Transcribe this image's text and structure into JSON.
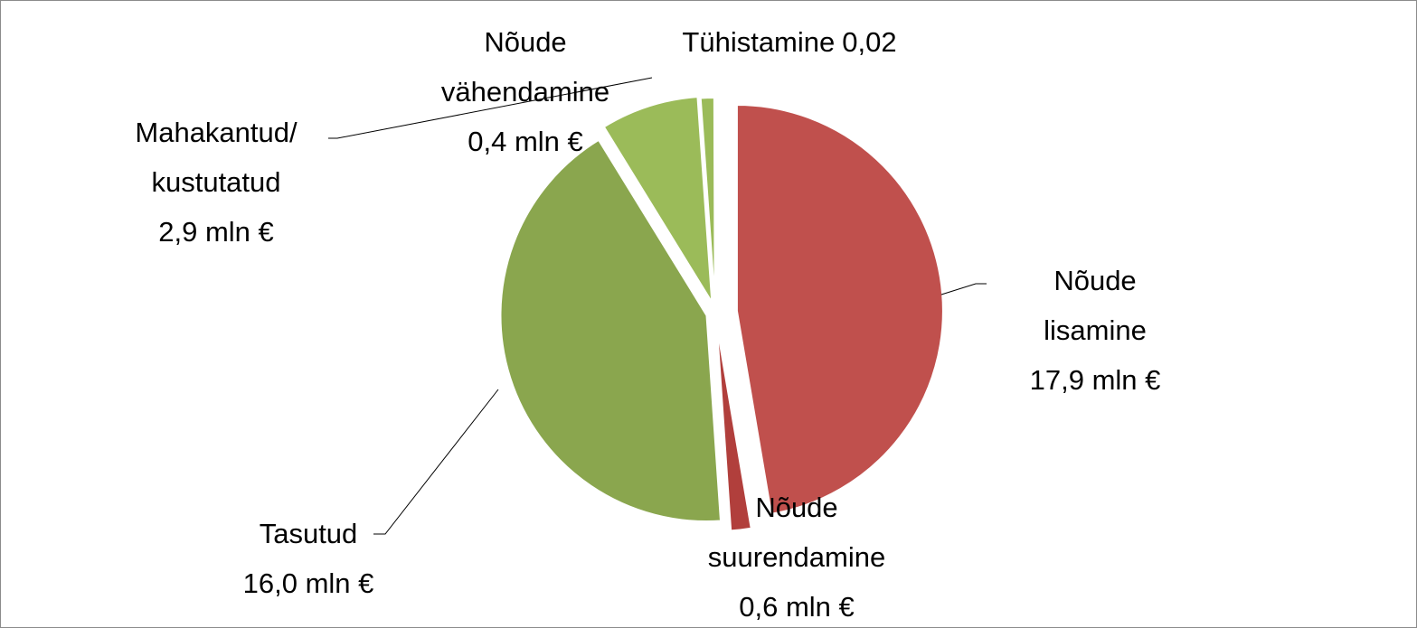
{
  "chart_data": {
    "type": "pie",
    "categories": [
      "Nõude lisamine",
      "Nõude suurendamine",
      "Tasutud",
      "Mahakantud/kustutatud",
      "Nõude vähendamine",
      "Tühistamine"
    ],
    "values": [
      17.9,
      0.6,
      16.0,
      2.9,
      0.4,
      0.02
    ],
    "value_labels": [
      "17,9 mln €",
      "0,6 mln €",
      "16,0 mln €",
      "2,9 mln €",
      "0,4 mln €",
      "0,02"
    ],
    "colors": [
      "#c0504d",
      "#b13f3c",
      "#8aa64e",
      "#9bbb59",
      "#9bbb59",
      "#9bbb59"
    ]
  }
}
